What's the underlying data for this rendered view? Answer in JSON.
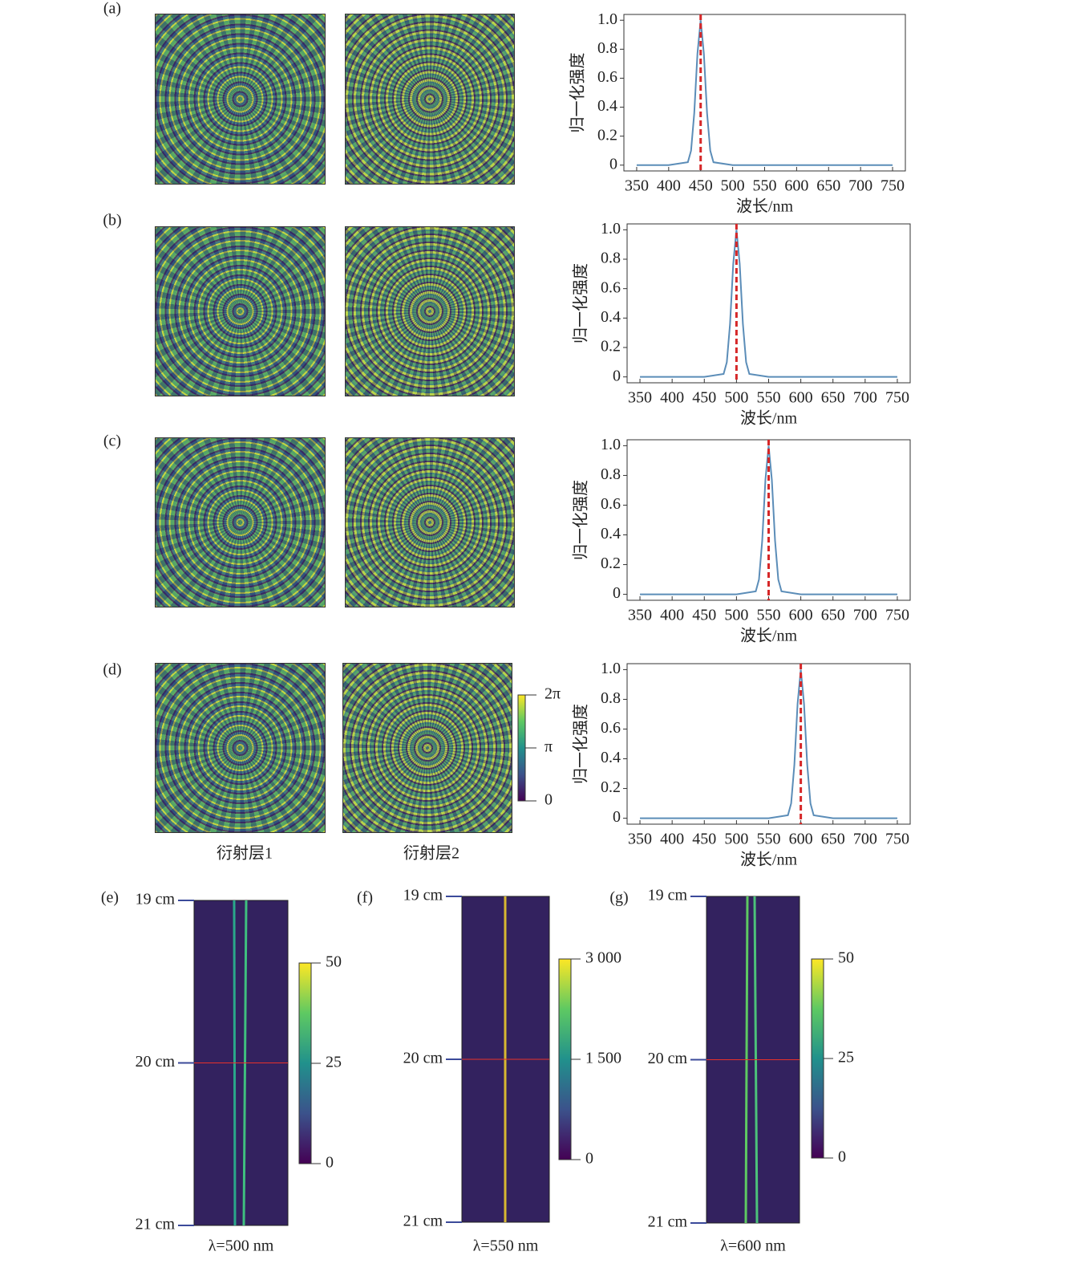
{
  "figure": {
    "panel_labels": [
      "(a)",
      "(b)",
      "(c)",
      "(d)",
      "(e)",
      "(f)",
      "(g)"
    ],
    "layer_labels": [
      "衍射层1",
      "衍射层2"
    ],
    "phase_colorbar": {
      "clim": [
        0,
        6.2832
      ],
      "ticks": [
        0,
        {
          "value": 3.1416,
          "label": "π"
        },
        {
          "value": 6.2832,
          "label": "2π"
        }
      ]
    }
  },
  "chart_data": [
    {
      "type": "line",
      "xlabel": "波长/nm",
      "ylabel": "归一化强度",
      "x": [
        350,
        400,
        430,
        435,
        440,
        445,
        450,
        455,
        460,
        465,
        470,
        500,
        550,
        600,
        650,
        700,
        750
      ],
      "series": [
        {
          "color": "#5b8db8",
          "values": [
            0,
            0,
            0.02,
            0.1,
            0.36,
            0.77,
            1,
            0.77,
            0.36,
            0.1,
            0.02,
            0,
            0,
            0,
            0,
            0,
            0
          ]
        }
      ],
      "marker_line": {
        "x": 450,
        "color": "#d62728"
      },
      "xlim": [
        330,
        770
      ],
      "ylim": [
        -0.04,
        1.04
      ],
      "xticks": [
        350,
        400,
        450,
        500,
        550,
        600,
        650,
        700,
        750
      ],
      "yticks": [
        0,
        0.2,
        0.4,
        0.6,
        0.8,
        {
          "value": 1,
          "label": "1.0"
        }
      ]
    },
    {
      "type": "line",
      "xlabel": "波长/nm",
      "ylabel": "归一化强度",
      "x": [
        350,
        400,
        450,
        480,
        485,
        490,
        495,
        500,
        505,
        510,
        515,
        520,
        550,
        600,
        650,
        700,
        750
      ],
      "series": [
        {
          "color": "#5b8db8",
          "values": [
            0,
            0,
            0,
            0.02,
            0.1,
            0.36,
            0.77,
            1,
            0.77,
            0.36,
            0.1,
            0.02,
            0,
            0,
            0,
            0,
            0
          ]
        }
      ],
      "marker_line": {
        "x": 500,
        "color": "#d62728"
      },
      "xlim": [
        330,
        770
      ],
      "ylim": [
        -0.04,
        1.04
      ],
      "xticks": [
        350,
        400,
        450,
        500,
        550,
        600,
        650,
        700,
        750
      ],
      "yticks": [
        0,
        0.2,
        0.4,
        0.6,
        0.8,
        {
          "value": 1,
          "label": "1.0"
        }
      ]
    },
    {
      "type": "line",
      "xlabel": "波长/nm",
      "ylabel": "归一化强度",
      "x": [
        350,
        400,
        450,
        500,
        530,
        535,
        540,
        545,
        550,
        555,
        560,
        565,
        570,
        600,
        650,
        700,
        750
      ],
      "series": [
        {
          "color": "#5b8db8",
          "values": [
            0,
            0,
            0,
            0,
            0.02,
            0.1,
            0.36,
            0.77,
            1,
            0.77,
            0.36,
            0.1,
            0.02,
            0,
            0,
            0,
            0
          ]
        }
      ],
      "marker_line": {
        "x": 550,
        "color": "#d62728"
      },
      "xlim": [
        330,
        770
      ],
      "ylim": [
        -0.04,
        1.04
      ],
      "xticks": [
        350,
        400,
        450,
        500,
        550,
        600,
        650,
        700,
        750
      ],
      "yticks": [
        0,
        0.2,
        0.4,
        0.6,
        0.8,
        {
          "value": 1,
          "label": "1.0"
        }
      ]
    },
    {
      "type": "line",
      "xlabel": "波长/nm",
      "ylabel": "归一化强度",
      "x": [
        350,
        400,
        450,
        500,
        550,
        580,
        585,
        590,
        595,
        600,
        605,
        610,
        615,
        620,
        650,
        700,
        750
      ],
      "series": [
        {
          "color": "#5b8db8",
          "values": [
            0,
            0,
            0,
            0,
            0,
            0.02,
            0.1,
            0.36,
            0.77,
            1,
            0.77,
            0.36,
            0.1,
            0.02,
            0,
            0,
            0
          ]
        }
      ],
      "marker_line": {
        "x": 600,
        "color": "#d62728"
      },
      "xlim": [
        330,
        770
      ],
      "ylim": [
        -0.04,
        1.04
      ],
      "xticks": [
        350,
        400,
        450,
        500,
        550,
        600,
        650,
        700,
        750
      ],
      "yticks": [
        0,
        0.2,
        0.4,
        0.6,
        0.8,
        {
          "value": 1,
          "label": "1.0"
        }
      ]
    },
    {
      "type": "heatmap",
      "xlabel": "λ=500 nm",
      "ylim": [
        21,
        19
      ],
      "yticks": [
        {
          "value": 19,
          "label": "19 cm"
        },
        {
          "value": 20,
          "label": "20 cm"
        },
        {
          "value": 21,
          "label": "21 cm"
        }
      ],
      "hline": {
        "y": 20,
        "color": "#e8312a"
      },
      "colormap": "viridis",
      "clim": [
        0,
        50
      ],
      "cticks": [
        0,
        25,
        50
      ]
    },
    {
      "type": "heatmap",
      "xlabel": "λ=550 nm",
      "ylim": [
        21,
        19
      ],
      "yticks": [
        {
          "value": 19,
          "label": "19 cm"
        },
        {
          "value": 20,
          "label": "20 cm"
        },
        {
          "value": 21,
          "label": "21 cm"
        }
      ],
      "hline": {
        "y": 20,
        "color": "#e8312a"
      },
      "colormap": "viridis",
      "clim": [
        0,
        3000
      ],
      "cticks": [
        0,
        {
          "value": 1500,
          "label": "1 500"
        },
        {
          "value": 3000,
          "label": "3 000"
        }
      ]
    },
    {
      "type": "heatmap",
      "xlabel": "λ=600 nm",
      "ylim": [
        21,
        19
      ],
      "yticks": [
        {
          "value": 19,
          "label": "19 cm"
        },
        {
          "value": 20,
          "label": "20 cm"
        },
        {
          "value": 21,
          "label": "21 cm"
        }
      ],
      "hline": {
        "y": 20,
        "color": "#e8312a"
      },
      "colormap": "viridis",
      "clim": [
        0,
        50
      ],
      "cticks": [
        0,
        25,
        50
      ]
    }
  ]
}
